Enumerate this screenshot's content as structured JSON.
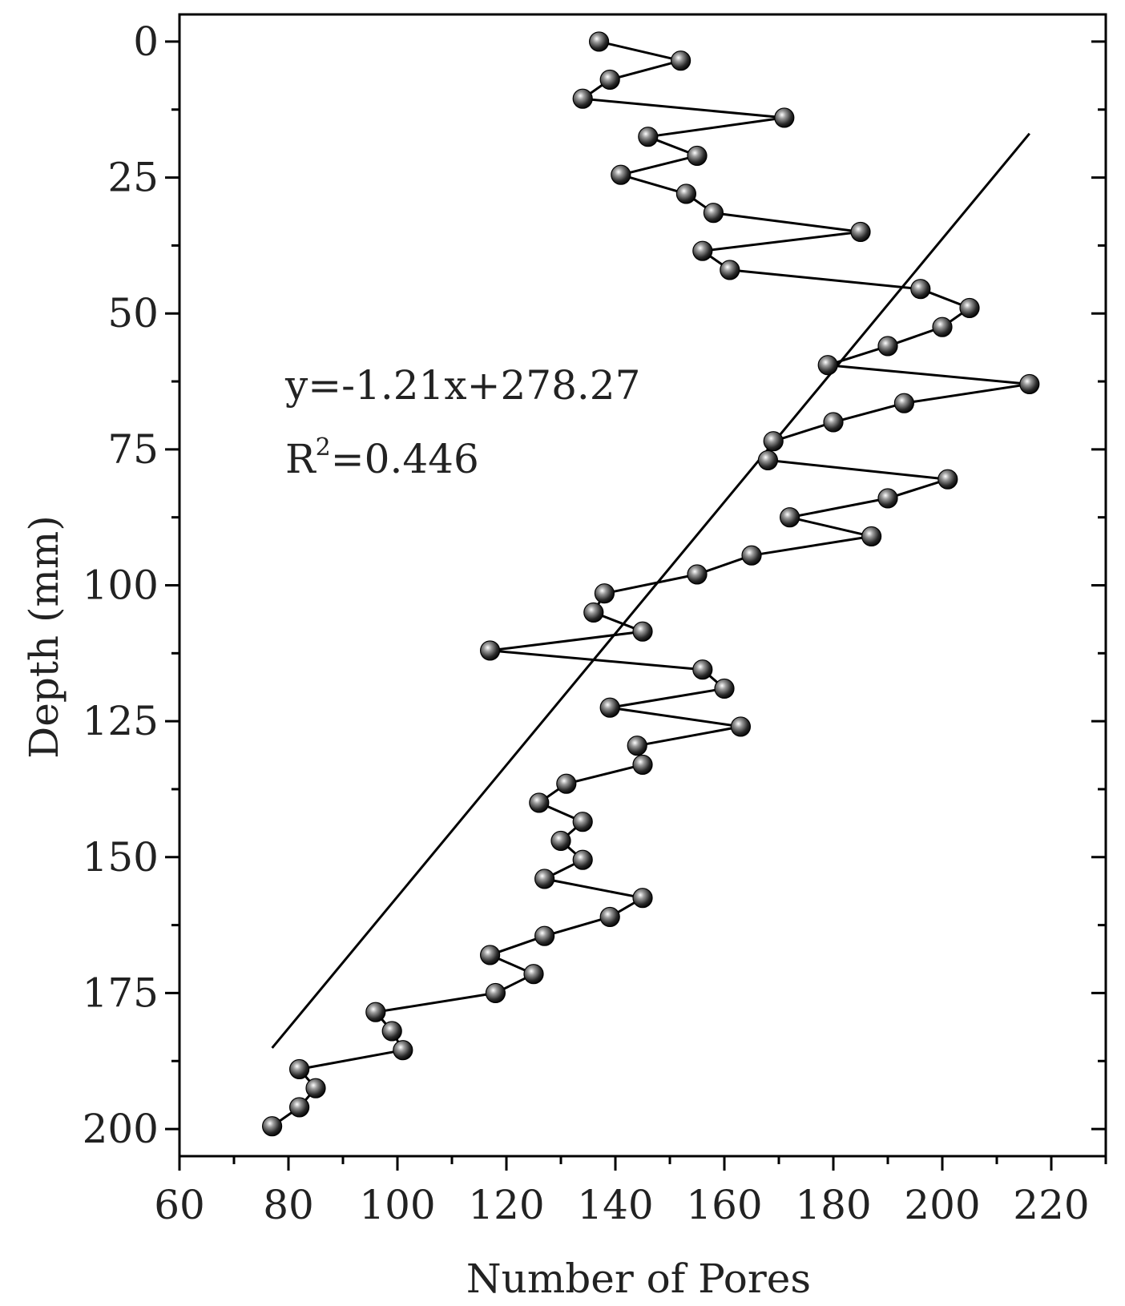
{
  "chart_data": {
    "type": "line",
    "xlabel": "Number of Pores",
    "ylabel": "Depth (mm)",
    "xlim": [
      60,
      230
    ],
    "ylim": [
      205,
      -5
    ],
    "xticks": [
      60,
      80,
      100,
      120,
      140,
      160,
      180,
      200,
      220
    ],
    "yticks": [
      0,
      25,
      50,
      75,
      100,
      125,
      150,
      175,
      200
    ],
    "y_inverted": true,
    "grid": false,
    "series": [
      {
        "x": [
          137,
          152,
          139,
          134,
          171,
          146,
          155,
          141,
          153,
          158,
          185,
          156,
          161,
          196,
          205,
          200,
          190,
          179,
          216,
          193,
          180,
          169,
          168,
          201,
          190,
          172,
          187,
          165,
          155,
          138,
          136,
          145,
          117,
          156,
          160,
          139,
          163,
          144,
          145,
          131,
          126,
          134,
          130,
          134,
          127,
          145,
          139,
          127,
          117,
          125,
          118,
          96,
          99,
          101,
          82,
          85,
          82,
          77
        ],
        "y": [
          0,
          3.5,
          7,
          10.5,
          14,
          17.5,
          21,
          24.5,
          28,
          31.5,
          35,
          38.5,
          42,
          45.5,
          49,
          52.5,
          56,
          59.5,
          63,
          66.5,
          70,
          73.5,
          77,
          80.5,
          84,
          87.5,
          91,
          94.5,
          98,
          101.5,
          105,
          108.5,
          112,
          115.5,
          119,
          122.5,
          126,
          129.5,
          133,
          136.5,
          140,
          143.5,
          147,
          150.5,
          154,
          157.5,
          161,
          164.5,
          168,
          171.5,
          175,
          178.5,
          182,
          185.5,
          189,
          192.5,
          196,
          199.5
        ]
      }
    ],
    "fit": {
      "slope": -1.21,
      "intercept": 278.27,
      "x_range": [
        77,
        216
      ]
    },
    "annotations": {
      "equation": "y=-1.21x+278.27",
      "r2_prefix": "R",
      "r2_sup": "2",
      "r2_value": "=0.446"
    }
  }
}
